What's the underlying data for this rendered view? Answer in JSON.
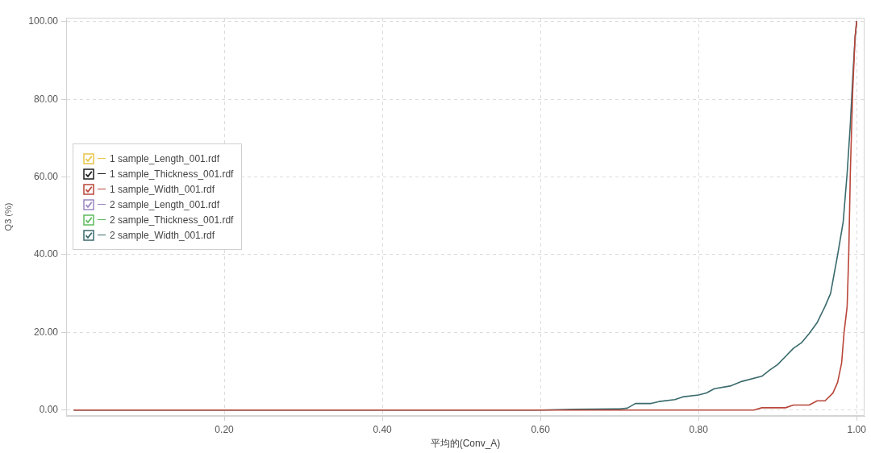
{
  "chart_data": {
    "type": "line",
    "xlabel": "平均的(Conv_A)",
    "ylabel": "Q3 (%)",
    "xlim": [
      0,
      1.01
    ],
    "ylim": [
      -1.5,
      101
    ],
    "xticks": [
      {
        "value": 0.2,
        "label": "0.20"
      },
      {
        "value": 0.4,
        "label": "0.40"
      },
      {
        "value": 0.6,
        "label": "0.60"
      },
      {
        "value": 0.8,
        "label": "0.80"
      },
      {
        "value": 1.0,
        "label": "1.00"
      }
    ],
    "yticks": [
      {
        "value": 0,
        "label": "0.00"
      },
      {
        "value": 20,
        "label": "20.00"
      },
      {
        "value": 40,
        "label": "40.00"
      },
      {
        "value": 60,
        "label": "60.00"
      },
      {
        "value": 80,
        "label": "80.00"
      },
      {
        "value": 100,
        "label": "100.00"
      }
    ],
    "grid": true,
    "legend": "left",
    "marker": "none",
    "line_style": "solid",
    "series": [
      {
        "name": "1 sample_Length_001.rdf",
        "color": "#e8c547"
      },
      {
        "name": "1 sample_Thickness_001.rdf",
        "color": "#1c1c1c"
      },
      {
        "name": "1 sample_Width_001.rdf",
        "color": "#b9463a",
        "x": [
          0.01,
          0.87,
          0.88,
          0.91,
          0.92,
          0.94,
          0.95,
          0.96,
          0.97,
          0.976,
          0.981,
          0.984,
          0.988,
          0.99,
          0.992,
          0.995,
          0.998,
          1.0
        ],
        "values": [
          0,
          0,
          0.6,
          0.6,
          1.3,
          1.3,
          2.4,
          2.4,
          4.4,
          7.2,
          12.1,
          19.8,
          26.7,
          40,
          61,
          82,
          96,
          100
        ]
      },
      {
        "name": "2 sample_Length_001.rdf",
        "color": "#9a86c0"
      },
      {
        "name": "2 sample_Thickness_001.rdf",
        "color": "#5dbb5d"
      },
      {
        "name": "2 sample_Width_001.rdf",
        "color": "#3a6a6c",
        "x": [
          0.01,
          0.6,
          0.64,
          0.7,
          0.71,
          0.72,
          0.74,
          0.75,
          0.77,
          0.78,
          0.8,
          0.81,
          0.82,
          0.84,
          0.855,
          0.88,
          0.89,
          0.9,
          0.91,
          0.92,
          0.93,
          0.94,
          0.95,
          0.96,
          0.967,
          0.976,
          0.983,
          0.988,
          0.992,
          0.995,
          0.998,
          1.0
        ],
        "values": [
          0,
          0,
          0.2,
          0.3,
          0.5,
          1.7,
          1.7,
          2.2,
          2.7,
          3.4,
          3.9,
          4.4,
          5.5,
          6.2,
          7.4,
          8.7,
          10.3,
          11.7,
          13.8,
          15.9,
          17.3,
          19.7,
          22.5,
          26.7,
          30,
          40,
          48.5,
          61,
          73.5,
          85.4,
          95.8,
          100
        ]
      }
    ]
  }
}
